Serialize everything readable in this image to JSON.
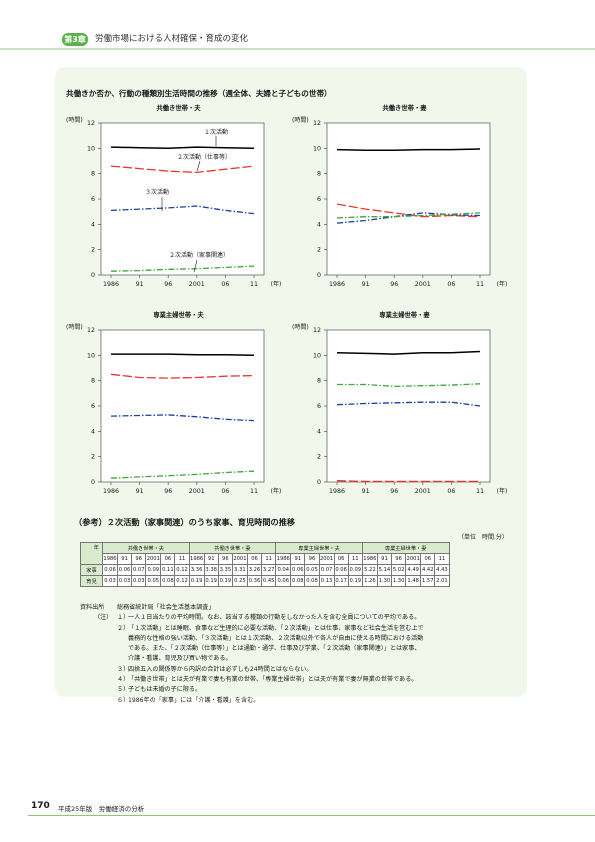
{
  "header": {
    "chapter_badge": "第3章",
    "chapter_title": "労働市場における人材確保・育成の変化"
  },
  "figure": {
    "title": "共働きか否か、行動の種類別生活時間の推移（週全体、夫婦と子どもの世帯）",
    "unit_label": "(時間)",
    "year_unit": "(年)",
    "x_ticks": [
      "1986",
      "91",
      "96",
      "2001",
      "06",
      "11"
    ],
    "y_ticks": [
      "0",
      "2",
      "4",
      "6",
      "8",
      "10",
      "12"
    ]
  },
  "chart_data": [
    {
      "type": "line",
      "title": "共働き世帯・夫",
      "x": [
        1986,
        1991,
        1996,
        2001,
        2006,
        2011
      ],
      "ylim": [
        0,
        12
      ],
      "series": [
        {
          "name": "１次活動",
          "color": "#000000",
          "dash": "solid",
          "values": [
            10.1,
            10.05,
            10.0,
            10.1,
            10.05,
            10.0
          ]
        },
        {
          "name": "２次活動（仕事等）",
          "color": "#e8352e",
          "dash": "dash",
          "values": [
            8.6,
            8.4,
            8.2,
            8.1,
            8.35,
            8.6
          ]
        },
        {
          "name": "３次活動",
          "color": "#1a3fa0",
          "dash": "dashdot",
          "values": [
            5.1,
            5.2,
            5.3,
            5.45,
            5.1,
            4.85
          ]
        },
        {
          "name": "２次活動（家事関連）",
          "color": "#3da83a",
          "dash": "dashdot",
          "values": [
            0.3,
            0.35,
            0.45,
            0.5,
            0.6,
            0.7
          ]
        }
      ]
    },
    {
      "type": "line",
      "title": "共働き世帯・妻",
      "x": [
        1986,
        1991,
        1996,
        2001,
        2006,
        2011
      ],
      "ylim": [
        0,
        12
      ],
      "series": [
        {
          "name": "１次活動",
          "color": "#000000",
          "dash": "solid",
          "values": [
            9.9,
            9.85,
            9.85,
            9.9,
            9.9,
            9.95
          ]
        },
        {
          "name": "２次活動（仕事等）",
          "color": "#e8352e",
          "dash": "dash",
          "values": [
            5.6,
            5.2,
            4.9,
            4.6,
            4.7,
            4.6
          ]
        },
        {
          "name": "３次活動",
          "color": "#1a3fa0",
          "dash": "dashdot",
          "values": [
            4.1,
            4.3,
            4.6,
            4.9,
            4.75,
            4.7
          ]
        },
        {
          "name": "２次活動（家事関連）",
          "color": "#3da83a",
          "dash": "dashdot",
          "values": [
            4.5,
            4.6,
            4.6,
            4.7,
            4.8,
            4.9
          ]
        }
      ]
    },
    {
      "type": "line",
      "title": "専業主婦世帯・夫",
      "x": [
        1986,
        1991,
        1996,
        2001,
        2006,
        2011
      ],
      "ylim": [
        0,
        12
      ],
      "series": [
        {
          "name": "１次活動",
          "color": "#000000",
          "dash": "solid",
          "values": [
            10.1,
            10.1,
            10.1,
            10.05,
            10.05,
            10.0
          ]
        },
        {
          "name": "２次活動（仕事等）",
          "color": "#e8352e",
          "dash": "dash",
          "values": [
            8.5,
            8.25,
            8.2,
            8.25,
            8.35,
            8.4
          ]
        },
        {
          "name": "３次活動",
          "color": "#1a3fa0",
          "dash": "dashdot",
          "values": [
            5.2,
            5.25,
            5.3,
            5.15,
            4.95,
            4.85
          ]
        },
        {
          "name": "２次活動（家事関連）",
          "color": "#3da83a",
          "dash": "dashdot",
          "values": [
            0.3,
            0.4,
            0.5,
            0.6,
            0.75,
            0.85
          ]
        }
      ]
    },
    {
      "type": "line",
      "title": "専業主婦世帯・妻",
      "x": [
        1986,
        1991,
        1996,
        2001,
        2006,
        2011
      ],
      "ylim": [
        0,
        12
      ],
      "series": [
        {
          "name": "１次活動",
          "color": "#000000",
          "dash": "solid",
          "values": [
            10.2,
            10.15,
            10.1,
            10.2,
            10.2,
            10.3
          ]
        },
        {
          "name": "２次活動（仕事等）",
          "color": "#e8352e",
          "dash": "dash",
          "values": [
            0.1,
            0.05,
            0.05,
            0.05,
            0.05,
            0.05
          ]
        },
        {
          "name": "３次活動",
          "color": "#1a3fa0",
          "dash": "dashdot",
          "values": [
            6.1,
            6.2,
            6.25,
            6.3,
            6.3,
            6.0
          ]
        },
        {
          "name": "２次活動（家事関連）",
          "color": "#3da83a",
          "dash": "dashdot",
          "values": [
            7.7,
            7.7,
            7.55,
            7.6,
            7.65,
            7.75
          ]
        }
      ]
    }
  ],
  "reference": {
    "title": "（参考）２次活動（家事関連）のうち家事、育児時間の推移",
    "unit": "（単位　時間.分）",
    "corner_label": "年",
    "groups": [
      "共働き世帯・夫",
      "共働き世帯・妻",
      "専業主婦世帯・夫",
      "専業主婦世帯・妻"
    ],
    "years": [
      "1986",
      "91",
      "96",
      "2001",
      "06",
      "11"
    ],
    "rows": [
      {
        "label": "家事",
        "values": [
          "0.06",
          "0.06",
          "0.07",
          "0.09",
          "0.11",
          "0.12",
          "3.36",
          "3.38",
          "3.35",
          "3.31",
          "3.26",
          "3.27",
          "0.04",
          "0.06",
          "0.05",
          "0.07",
          "0.06",
          "0.09",
          "5.22",
          "5.14",
          "5.02",
          "4.49",
          "4.42",
          "4.43"
        ]
      },
      {
        "label": "育児",
        "values": [
          "0.03",
          "0.03",
          "0.03",
          "0.05",
          "0.08",
          "0.12",
          "0.19",
          "0.19",
          "0.19",
          "0.25",
          "0.36",
          "0.45",
          "0.06",
          "0.08",
          "0.08",
          "0.13",
          "0.17",
          "0.19",
          "1.26",
          "1.30",
          "1.30",
          "1.48",
          "1.57",
          "2.01"
        ]
      }
    ]
  },
  "notes": {
    "source_label": "資料出所",
    "source_text": "総務省統計局「社会生活基本調査」",
    "notes_label": "（注）",
    "items": [
      {
        "num": "１）",
        "text": "一人１日当たりの平均時間。なお、該当する種類の行動をしなかった人を含む全員についての平均である。"
      },
      {
        "num": "２）",
        "text": "「１次活動」とは睡眠、食事など生理的に必要な活動、「２次活動」とは仕事、家事など社会生活を営む上で"
      },
      {
        "num": "",
        "text": "義務的な性格の強い活動、「３次活動」とは１次活動、２次活動以外で各人が自由に使える時間における活動"
      },
      {
        "num": "",
        "text": "である。また、「２次活動（仕事等）」とは通勤・通学、仕事及び学業、「２次活動（家事関連）」とは家事、"
      },
      {
        "num": "",
        "text": "介護・看護、育児及び買い物である。"
      },
      {
        "num": "３）",
        "text": "四捨五入の関係等から内訳の合計は必ずしも24時間とはならない。"
      },
      {
        "num": "４）",
        "text": "「共働き世帯」とは夫が有業で妻も有業の世帯、「専業主婦世帯」とは夫が有業で妻が無業の世帯である。"
      },
      {
        "num": "５）",
        "text": "子どもは未婚の子に限る。"
      },
      {
        "num": "６）",
        "text": "1986年の「家事」には「介護・看護」を含む。"
      }
    ]
  },
  "footer": {
    "page_number": "170",
    "publication": "平成25年版　労働経済の分析"
  }
}
